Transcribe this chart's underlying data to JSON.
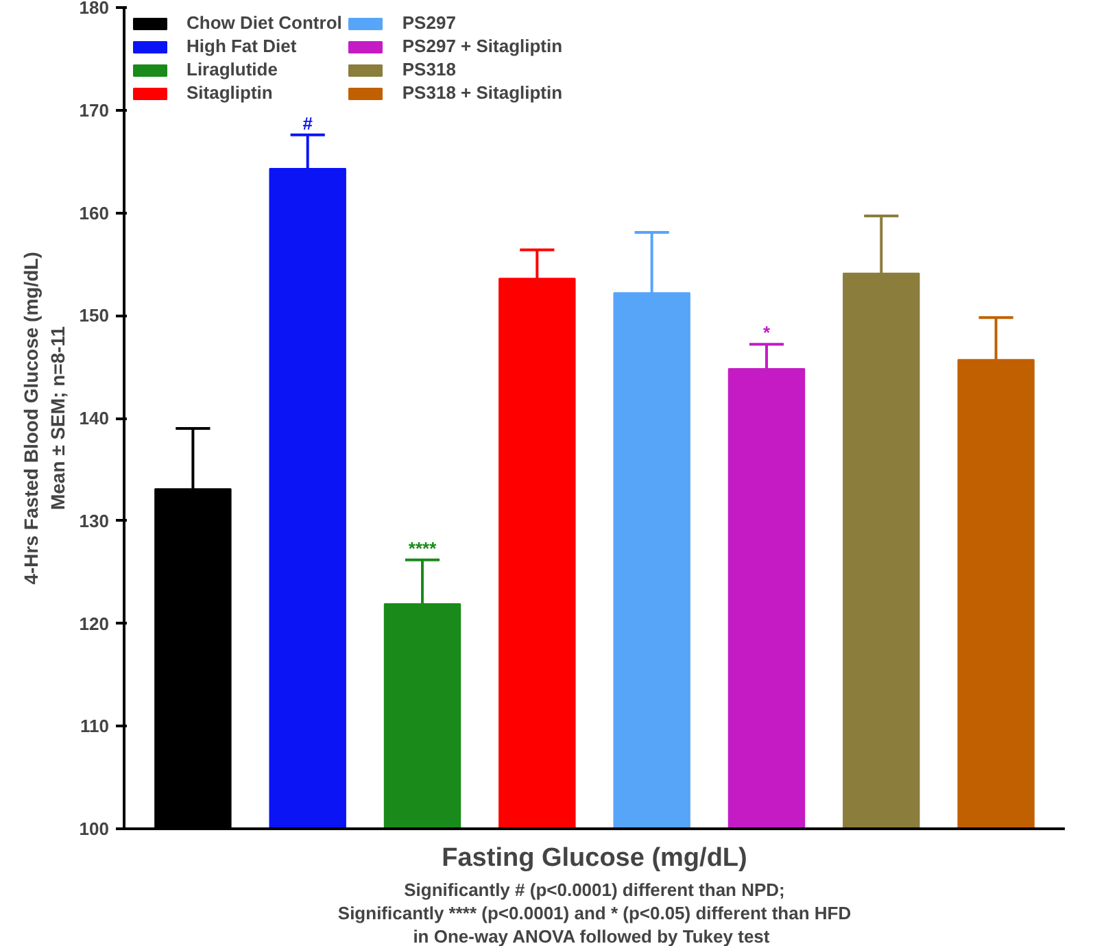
{
  "chart_data": {
    "type": "bar",
    "categories": [
      null,
      null,
      null,
      null,
      null,
      null,
      null,
      null
    ],
    "series": [
      {
        "name": "Chow Diet Control",
        "color": "#000000",
        "values": [
          133.1,
          null,
          null,
          null,
          null,
          null,
          null,
          null
        ],
        "errors": [
          5.9,
          null,
          null,
          null,
          null,
          null,
          null,
          null
        ]
      },
      {
        "name": "High Fat Diet",
        "color": "#0a14f5",
        "values": [
          null,
          164.3,
          null,
          null,
          null,
          null,
          null,
          null
        ],
        "errors": [
          null,
          3.3,
          null,
          null,
          null,
          null,
          null,
          null
        ],
        "value_labels": [
          null,
          "#",
          null,
          null,
          null,
          null,
          null,
          null
        ]
      },
      {
        "name": "Liraglutide",
        "color": "#1a8a1a",
        "values": [
          null,
          null,
          121.9,
          null,
          null,
          null,
          null,
          null
        ],
        "errors": [
          null,
          null,
          4.3,
          null,
          null,
          null,
          null,
          null
        ],
        "value_labels": [
          null,
          null,
          "****",
          null,
          null,
          null,
          null,
          null
        ]
      },
      {
        "name": "Sitagliptin",
        "color": "#ff0000",
        "values": [
          null,
          null,
          null,
          153.6,
          null,
          null,
          null,
          null
        ],
        "errors": [
          null,
          null,
          null,
          2.8,
          null,
          null,
          null,
          null
        ]
      },
      {
        "name": "PS297",
        "color": "#56a5f9",
        "values": [
          null,
          null,
          null,
          null,
          152.2,
          null,
          null,
          null
        ],
        "errors": [
          null,
          null,
          null,
          null,
          5.9,
          null,
          null,
          null
        ]
      },
      {
        "name": "PS297 + Sitagliptin",
        "color": "#c51bc5",
        "values": [
          null,
          null,
          null,
          null,
          null,
          144.8,
          null,
          null
        ],
        "errors": [
          null,
          null,
          null,
          null,
          null,
          2.4,
          null,
          null
        ],
        "value_labels": [
          null,
          null,
          null,
          null,
          null,
          "*",
          null,
          null
        ]
      },
      {
        "name": "PS318",
        "color": "#8b7d3c",
        "values": [
          null,
          null,
          null,
          null,
          null,
          null,
          154.1,
          null
        ],
        "errors": [
          null,
          null,
          null,
          null,
          null,
          null,
          5.6,
          null
        ]
      },
      {
        "name": "PS318 + Sitagliptin",
        "color": "#c06000",
        "values": [
          null,
          null,
          null,
          null,
          null,
          null,
          null,
          145.7
        ],
        "errors": [
          null,
          null,
          null,
          null,
          null,
          null,
          null,
          4.1
        ]
      }
    ],
    "xlabel": "Fasting Glucose (mg/dL)",
    "ylabel": "4-Hrs Fasted Blood Glucose (mg/dL)\nMean ± SEM; n=8-11",
    "ylim": [
      100,
      180
    ],
    "yticks": [
      100,
      110,
      120,
      130,
      140,
      150,
      160,
      170,
      180
    ],
    "grid": false,
    "legend": "top",
    "tick_labels": "y",
    "annotations": [
      "Significantly # (p<0.0001) different than NPD;",
      "Significantly **** (p<0.0001) and * (p<0.05) different than HFD",
      "in One-way  ANOVA followed by Tukey test"
    ]
  }
}
